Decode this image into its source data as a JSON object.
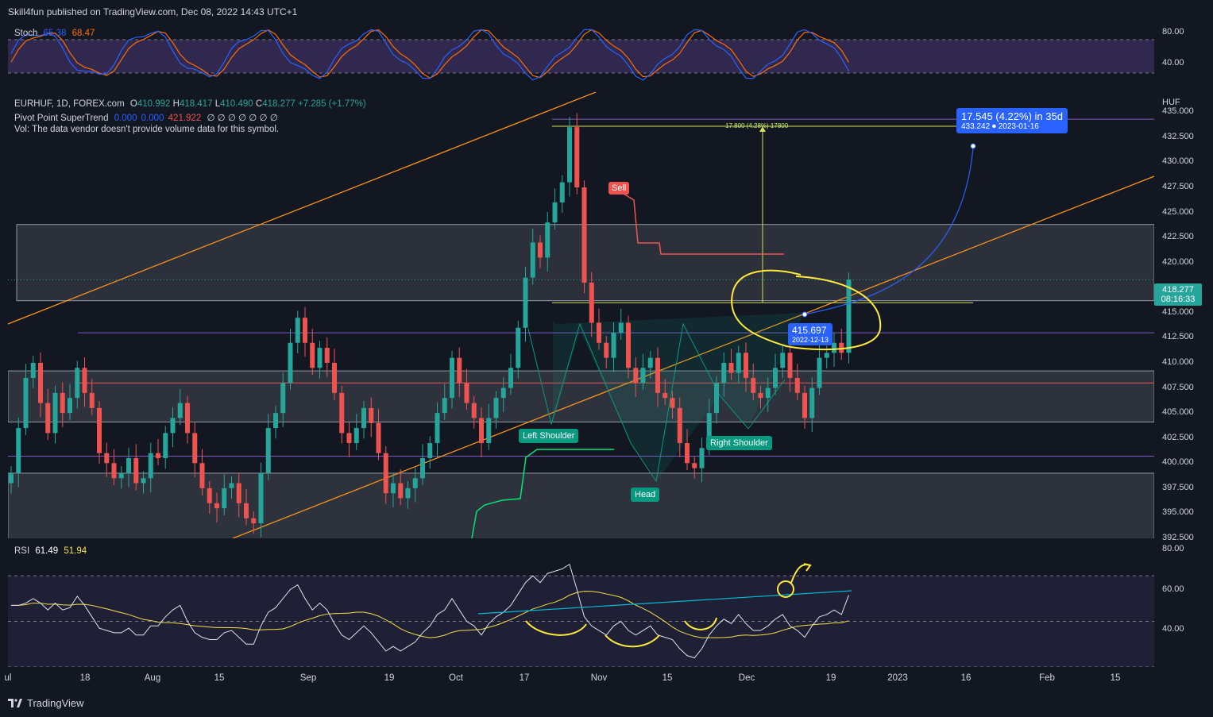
{
  "header": {
    "published": "Skill4fun published on TradingView.com, Dec 08, 2022 14:43 UTC+1"
  },
  "stoch": {
    "name": "Stoch",
    "k": "65.38",
    "d": "68.47",
    "levels": [
      "80.00",
      "40.00"
    ]
  },
  "main": {
    "symbol": "EURHUF, 1D, FOREX.com",
    "ohlc": {
      "o_label": "O",
      "o": "410.992",
      "h_label": "H",
      "h": "418.417",
      "l_label": "L",
      "l": "410.490",
      "c_label": "C",
      "c": "418.277",
      "chg": "+7.285 (+1.77%)"
    },
    "indicator2": {
      "name": "Pivot Point SuperTrend",
      "v1": "0.000",
      "v2": "0.000",
      "v3": "421.922",
      "glyphs": "∅ ∅ ∅ ∅ ∅ ∅ ∅"
    },
    "vol_note": "Vol: The data vendor doesn't provide volume data for this symbol.",
    "currency": "HUF",
    "y_ticks": [
      "435.000",
      "432.500",
      "430.000",
      "427.500",
      "425.000",
      "422.500",
      "420.000",
      "415.000",
      "412.500",
      "410.000",
      "407.500",
      "405.000",
      "402.500",
      "400.000",
      "397.500",
      "395.000",
      "392.500"
    ],
    "last_price": "418.277",
    "countdown": "08:16:33",
    "annotations": {
      "measure_top": "17.800 (4.28%) 17800",
      "projection_main": "17.545 (4.22%) in 35d",
      "projection_sub": "433.242 ⏺ 2023-01-16",
      "neckline_price": "415.697",
      "neckline_date": "2022-12-13",
      "sell": "Sell",
      "left_shoulder": "Left Shoulder",
      "head": "Head",
      "right_shoulder": "Right Shoulder"
    }
  },
  "rsi": {
    "name": "RSI",
    "value": "61.49",
    "ma": "51.94",
    "levels": [
      "80.00",
      "60.00",
      "40.00"
    ]
  },
  "x_axis": [
    "ul",
    "18",
    "Aug",
    "15",
    "Sep",
    "19",
    "Oct",
    "17",
    "Nov",
    "15",
    "Dec",
    "19",
    "2023",
    "16",
    "Feb",
    "15"
  ],
  "footer": {
    "brand": "TradingView"
  },
  "colors": {
    "up": "#26a69a",
    "down": "#ef5350",
    "bg": "#131722",
    "channel": "#f7931a",
    "annotation": "#ffeb3b",
    "projection": "#2962ff"
  },
  "chart_data": {
    "type": "candlestick",
    "title": "EURHUF, 1D, FOREX.com",
    "ylabel": "HUF",
    "ylim": [
      392.5,
      437.0
    ],
    "x": [
      "2022-07-01",
      "2022-07-04",
      "2022-07-05",
      "2022-07-06",
      "2022-07-07",
      "2022-07-08",
      "2022-07-11",
      "2022-07-12",
      "2022-07-13",
      "2022-07-14",
      "2022-07-15",
      "2022-07-18",
      "2022-07-19",
      "2022-07-20",
      "2022-07-21",
      "2022-07-22",
      "2022-07-25",
      "2022-07-26",
      "2022-07-27",
      "2022-07-28",
      "2022-07-29",
      "2022-08-01",
      "2022-08-02",
      "2022-08-03",
      "2022-08-04",
      "2022-08-05",
      "2022-08-08",
      "2022-08-09",
      "2022-08-10",
      "2022-08-11",
      "2022-08-12",
      "2022-08-15",
      "2022-08-16",
      "2022-08-17",
      "2022-08-18",
      "2022-08-19",
      "2022-08-22",
      "2022-08-23",
      "2022-08-24",
      "2022-08-25",
      "2022-08-26",
      "2022-08-29",
      "2022-08-30",
      "2022-08-31",
      "2022-09-01",
      "2022-09-02",
      "2022-09-05",
      "2022-09-06",
      "2022-09-07",
      "2022-09-08",
      "2022-09-09",
      "2022-09-12",
      "2022-09-13",
      "2022-09-14",
      "2022-09-15",
      "2022-09-16",
      "2022-09-19",
      "2022-09-20",
      "2022-09-21",
      "2022-09-22",
      "2022-09-23",
      "2022-09-26",
      "2022-09-27",
      "2022-09-28",
      "2022-09-29",
      "2022-09-30",
      "2022-10-03",
      "2022-10-04",
      "2022-10-05",
      "2022-10-06",
      "2022-10-07",
      "2022-10-10",
      "2022-10-11",
      "2022-10-12",
      "2022-10-13",
      "2022-10-14",
      "2022-10-17",
      "2022-10-18",
      "2022-10-19",
      "2022-10-20",
      "2022-10-21",
      "2022-10-24",
      "2022-10-25",
      "2022-10-26",
      "2022-10-27",
      "2022-10-28",
      "2022-10-31",
      "2022-11-01",
      "2022-11-02",
      "2022-11-03",
      "2022-11-04",
      "2022-11-07",
      "2022-11-08",
      "2022-11-09",
      "2022-11-10",
      "2022-11-11",
      "2022-11-14",
      "2022-11-15",
      "2022-11-16",
      "2022-11-17",
      "2022-11-18",
      "2022-11-21",
      "2022-11-22",
      "2022-11-23",
      "2022-11-24",
      "2022-11-25",
      "2022-11-28",
      "2022-11-29",
      "2022-11-30",
      "2022-12-01",
      "2022-12-02",
      "2022-12-05",
      "2022-12-06",
      "2022-12-07",
      "2022-12-08"
    ],
    "close": [
      399.0,
      403.5,
      408.5,
      410.0,
      406.0,
      403.0,
      407.0,
      405.0,
      406.5,
      409.5,
      407.0,
      405.5,
      401.0,
      400.0,
      398.5,
      399.0,
      400.5,
      398.0,
      398.5,
      401.0,
      400.5,
      403.0,
      404.5,
      406.0,
      403.0,
      400.0,
      397.5,
      396.0,
      395.5,
      397.5,
      398.0,
      396.0,
      394.5,
      394.0,
      399.0,
      403.5,
      405.0,
      408.0,
      412.0,
      414.5,
      412.0,
      409.5,
      411.5,
      410.0,
      407.0,
      403.0,
      402.0,
      403.5,
      405.5,
      404.0,
      401.0,
      397.0,
      398.0,
      396.5,
      397.5,
      398.5,
      400.5,
      402.0,
      405.0,
      406.5,
      410.5,
      408.0,
      406.0,
      404.5,
      402.0,
      404.5,
      406.5,
      407.5,
      409.5,
      413.5,
      418.5,
      422.0,
      420.5,
      424.0,
      426.0,
      428.0,
      433.5,
      427.5,
      418.0,
      414.0,
      412.0,
      410.5,
      413.0,
      414.0,
      409.5,
      408.0,
      409.5,
      410.5,
      407.0,
      406.5,
      405.5,
      402.0,
      400.0,
      399.5,
      401.5,
      405.0,
      408.0,
      410.0,
      409.0,
      411.0,
      408.5,
      407.0,
      406.5,
      407.5,
      409.5,
      411.0,
      408.5,
      407.0,
      404.5,
      407.5,
      410.5,
      411.0,
      412.0,
      411.0,
      418.3
    ],
    "rsi": [
      57,
      57,
      58,
      60,
      58,
      55,
      58,
      55,
      56,
      61,
      57,
      52,
      47,
      46,
      45,
      45,
      47,
      44,
      44,
      48,
      48,
      52,
      55,
      57,
      50,
      45,
      43,
      42,
      42,
      45,
      46,
      43,
      40,
      40,
      48,
      54,
      56,
      60,
      64,
      66,
      60,
      55,
      58,
      55,
      49,
      44,
      42,
      45,
      48,
      45,
      41,
      37,
      39,
      37,
      39,
      41,
      45,
      48,
      53,
      55,
      60,
      55,
      50,
      48,
      44,
      49,
      52,
      54,
      57,
      62,
      67,
      70,
      67,
      71,
      72,
      73,
      75,
      64,
      52,
      48,
      46,
      44,
      48,
      50,
      46,
      44,
      46,
      48,
      44,
      43,
      42,
      38,
      35,
      34,
      38,
      44,
      48,
      51,
      49,
      53,
      49,
      46,
      46,
      48,
      51,
      53,
      48,
      46,
      43,
      48,
      52,
      53,
      55,
      53,
      61.49
    ],
    "rsi_ylim": [
      30,
      85
    ]
  }
}
